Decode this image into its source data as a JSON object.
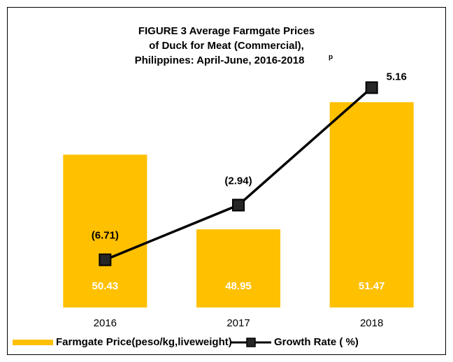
{
  "chart_data": {
    "type": "bar-line",
    "title": [
      "FIGURE 3  Average Farmgate Prices",
      "of  Duck for Meat (Commercial),",
      "Philippines:   April-June, 2016-2018"
    ],
    "title_note": "p",
    "categories": [
      "2016",
      "2017",
      "2018"
    ],
    "series": [
      {
        "name": "Farmgate Price(peso/kg,liveweight)",
        "type": "bar",
        "color": "#FFC000",
        "values": [
          50.43,
          48.95,
          51.47
        ]
      },
      {
        "name": "Growth Rate ( %)",
        "type": "line",
        "axis": "y2",
        "color": "#000000",
        "values": [
          -6.71,
          -2.94,
          5.16
        ],
        "value_labels": [
          "(6.71)",
          "(2.94)",
          "5.16"
        ]
      }
    ],
    "ylim": [
      47.4,
      52
    ],
    "y2lim": [
      -10,
      6
    ],
    "legend": "bottom"
  }
}
